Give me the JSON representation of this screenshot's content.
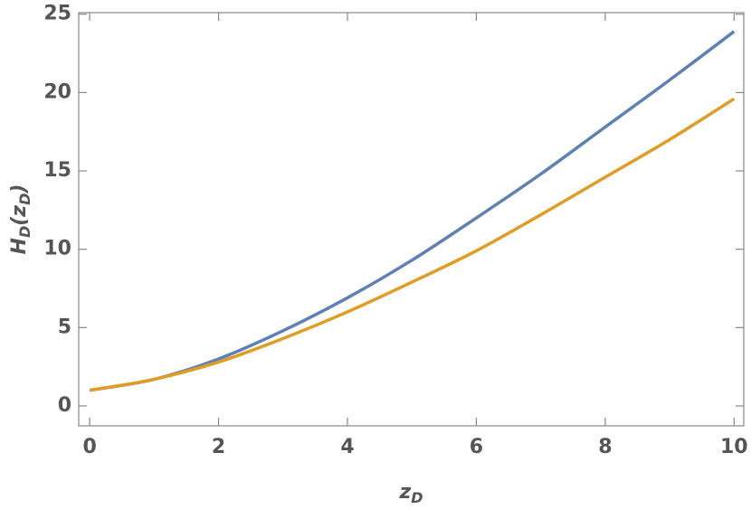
{
  "chart_data": {
    "type": "line",
    "xlabel": [
      {
        "text": "z"
      },
      {
        "text": "D",
        "sub": true
      }
    ],
    "ylabel": [
      {
        "text": "H"
      },
      {
        "text": "D",
        "sub": true
      },
      {
        "text": "("
      },
      {
        "text": "z"
      },
      {
        "text": "D",
        "sub": true
      },
      {
        "text": ")"
      }
    ],
    "x": [
      0,
      1,
      2,
      3,
      4,
      5,
      6,
      7,
      8,
      9,
      10
    ],
    "series": [
      {
        "color": "#5E81B5",
        "values": [
          1.0,
          1.7,
          3.0,
          4.8,
          6.9,
          9.3,
          12.0,
          14.8,
          17.8,
          20.8,
          23.9
        ]
      },
      {
        "color": "#E19C24",
        "values": [
          1.0,
          1.7,
          2.8,
          4.3,
          6.0,
          7.9,
          9.9,
          12.2,
          14.6,
          17.0,
          19.6
        ]
      }
    ],
    "xlim": [
      -0.17,
      10.15
    ],
    "ylim": [
      -1.27,
      25.1
    ],
    "xticks": [
      0,
      2,
      4,
      6,
      8,
      10
    ],
    "yticks": [
      0,
      5,
      10,
      15,
      20,
      25
    ]
  }
}
